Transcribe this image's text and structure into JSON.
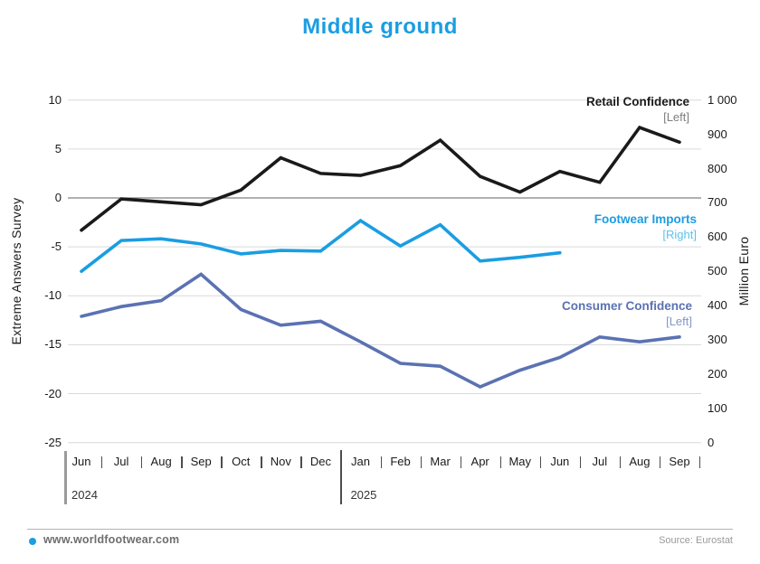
{
  "title": "Middle ground",
  "accent_color": "#1b9de2",
  "footer": {
    "site": "www.worldfootwear.com",
    "source": "Source: Eurostat"
  },
  "chart_data": {
    "type": "line",
    "title": "Middle ground",
    "x_categories": [
      "Jun",
      "Jul",
      "Aug",
      "Sep",
      "Oct",
      "Nov",
      "Dec",
      "Jan",
      "Feb",
      "Mar",
      "Apr",
      "May",
      "Jun",
      "Jul",
      "Aug",
      "Sep"
    ],
    "year_labels": [
      {
        "label": "2024",
        "at_index": 0
      },
      {
        "label": "2025",
        "at_index": 7
      }
    ],
    "left_axis": {
      "title": "Extreme Answers Survey",
      "min": -25,
      "max": 10,
      "tick_values": [
        10,
        5,
        0,
        -5,
        -10,
        -15,
        -20,
        -25
      ],
      "tick_labels": [
        "10",
        "5",
        "0",
        "-5",
        "-10",
        "-15",
        "-20",
        "-25"
      ],
      "zero_line_value": 0
    },
    "right_axis": {
      "title": "Million Euro",
      "min": 0,
      "max": 1000,
      "tick_values": [
        1000,
        900,
        800,
        700,
        600,
        500,
        400,
        300,
        200,
        100,
        0
      ],
      "tick_labels": [
        "1 000",
        "900",
        "800",
        "700",
        "600",
        "500",
        "400",
        "300",
        "200",
        "100",
        "0"
      ]
    },
    "grid": true,
    "legend_position": "inline-right",
    "series": [
      {
        "name": "Consumer Confidence",
        "axis": "left",
        "axis_tag": "[Left]",
        "color": "#5b72b2",
        "tag_color": "#8396c8",
        "values": [
          -12.1,
          -11.1,
          -10.5,
          -7.8,
          -11.4,
          -13.0,
          -12.6,
          -14.7,
          -16.9,
          -17.2,
          -19.3,
          -17.6,
          -16.3,
          -14.2,
          -14.7,
          -14.2
        ]
      },
      {
        "name": "Footwear Imports",
        "axis": "right",
        "axis_tag": "[Right]",
        "color": "#1b9de2",
        "tag_color": "#5fc0ed",
        "values": [
          500,
          590,
          595,
          580,
          551,
          561,
          559,
          648,
          574,
          636,
          530,
          541,
          554,
          null,
          null,
          null
        ]
      },
      {
        "name": "Retail Confidence",
        "axis": "left",
        "axis_tag": "[Left]",
        "color": "#1a1a1a",
        "tag_color": "#7f7f7f",
        "values": [
          -3.3,
          -0.1,
          -0.4,
          -0.7,
          0.8,
          4.1,
          2.5,
          2.3,
          3.3,
          5.9,
          2.2,
          0.6,
          2.7,
          1.6,
          7.2,
          5.7
        ]
      }
    ]
  }
}
